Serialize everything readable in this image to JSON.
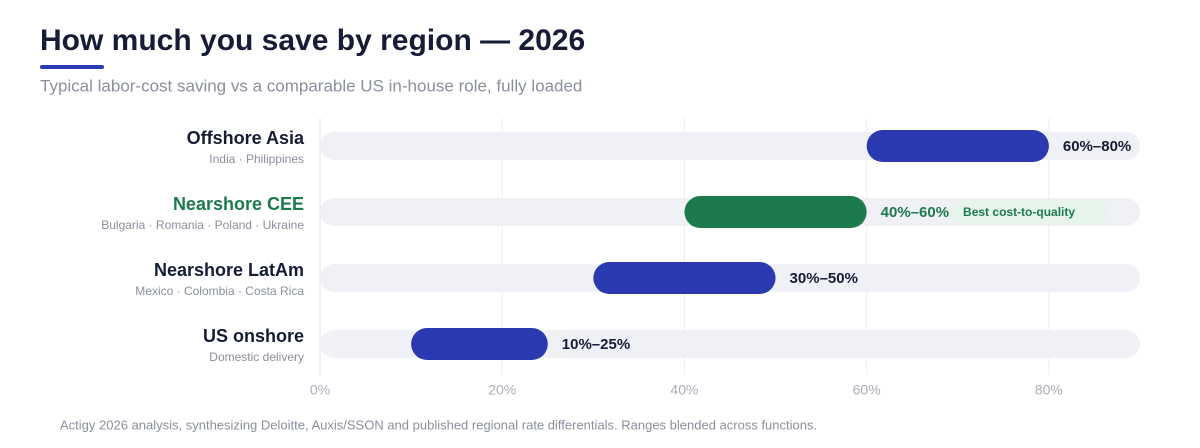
{
  "chart_data": {
    "type": "range-bar",
    "title": "How much you save by region — 2026",
    "subtitle": "Typical labor-cost saving vs a comparable US in-house role, fully loaded",
    "categories": [
      "Offshore Asia",
      "Nearshore CEE",
      "Nearshore LatAm",
      "US onshore"
    ],
    "category_details": [
      "India · Philippines",
      "Bulgaria · Romania · Poland · Ukraine",
      "Mexico · Colombia · Costa Rica",
      "Domestic delivery"
    ],
    "low": [
      60,
      40,
      30,
      10
    ],
    "high": [
      80,
      60,
      50,
      25
    ],
    "value_labels": [
      "60%–80%",
      "40%–60%",
      "30%–50%",
      "10%–25%"
    ],
    "colors": [
      "#2b3ab0",
      "#1c7a4c",
      "#2b3ab0",
      "#2b3ab0"
    ],
    "highlight": {
      "category": "Nearshore CEE",
      "label": "Best cost-to-quality",
      "color": "#1c7a4c"
    },
    "xlim": [
      0,
      90
    ],
    "xticks": [
      {
        "value": 0,
        "label": "0%"
      },
      {
        "value": 20,
        "label": "20%"
      },
      {
        "value": 40,
        "label": "40%"
      },
      {
        "value": 60,
        "label": "60%"
      },
      {
        "value": 80,
        "label": "80%"
      }
    ],
    "grid": true,
    "source": "Actigy 2026 analysis, synthesizing Deloitte, Auxis/SSON and published regional rate differentials. Ranges blended across functions."
  }
}
